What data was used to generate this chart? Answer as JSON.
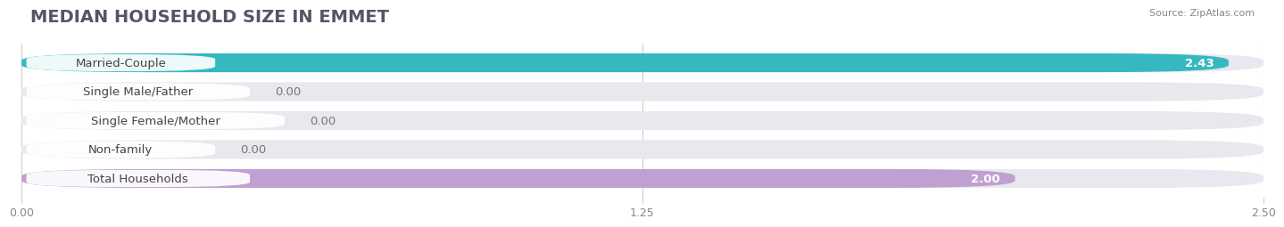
{
  "title": "MEDIAN HOUSEHOLD SIZE IN EMMET",
  "source": "Source: ZipAtlas.com",
  "categories": [
    "Married-Couple",
    "Single Male/Father",
    "Single Female/Mother",
    "Non-family",
    "Total Households"
  ],
  "values": [
    2.43,
    0.0,
    0.0,
    0.0,
    2.0
  ],
  "bar_colors": [
    "#36b8c0",
    "#a0b8e0",
    "#f09aaa",
    "#f5c99a",
    "#c0a0d0"
  ],
  "label_bg_colors": [
    "#36b8c0",
    "#a0b8e0",
    "#f09aaa",
    "#f5c99a",
    "#c0a0d0"
  ],
  "bg_color": "#ffffff",
  "bar_bg_color": "#e8e8ee",
  "xlim": [
    0,
    2.5
  ],
  "xticks": [
    0.0,
    1.25,
    2.5
  ],
  "xtick_labels": [
    "0.00",
    "1.25",
    "2.50"
  ],
  "value_color_inside": "#ffffff",
  "value_color_outside": "#777777",
  "title_fontsize": 14,
  "label_fontsize": 9.5,
  "tick_fontsize": 9,
  "source_fontsize": 8
}
